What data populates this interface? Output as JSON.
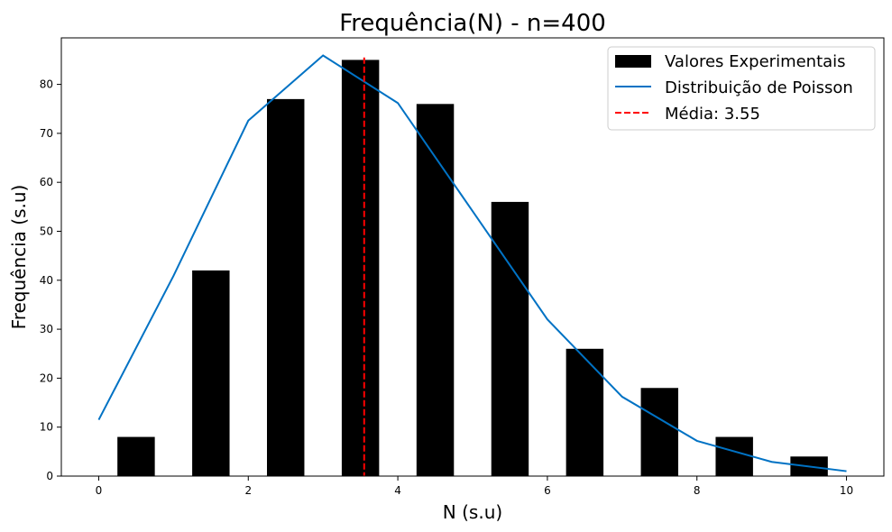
{
  "chart_data": {
    "type": "bar",
    "title": "Frequência(N) - n=400",
    "xlabel": "N (s.u)",
    "ylabel": "Frequência (s.u)",
    "xlim": [
      -0.5,
      10.5
    ],
    "ylim": [
      0,
      89.5
    ],
    "xticks": [
      0,
      2,
      4,
      6,
      8,
      10
    ],
    "yticks": [
      0,
      10,
      20,
      30,
      40,
      50,
      60,
      70,
      80
    ],
    "grid": false,
    "legend_position": "top-right",
    "bars": {
      "name": "Valores Experimentais",
      "color": "#000000",
      "x_left": [
        0.25,
        1.25,
        2.25,
        3.25,
        4.25,
        5.25,
        6.25,
        7.25,
        8.25,
        9.25
      ],
      "width": 0.5,
      "values": [
        8,
        42,
        77,
        85,
        76,
        56,
        26,
        18,
        8,
        4
      ]
    },
    "line": {
      "name": "Distribuição de Poisson",
      "color": "#0072c4",
      "x": [
        0,
        1,
        2,
        3,
        4,
        5,
        6,
        7,
        8,
        9,
        10
      ],
      "y": [
        11.5,
        40.9,
        72.6,
        85.9,
        76.2,
        54.1,
        32.0,
        16.2,
        7.2,
        2.9,
        1.0
      ]
    },
    "mean_line": {
      "name": "Média: 3.55",
      "color": "#ff0000",
      "x": 3.55
    }
  }
}
